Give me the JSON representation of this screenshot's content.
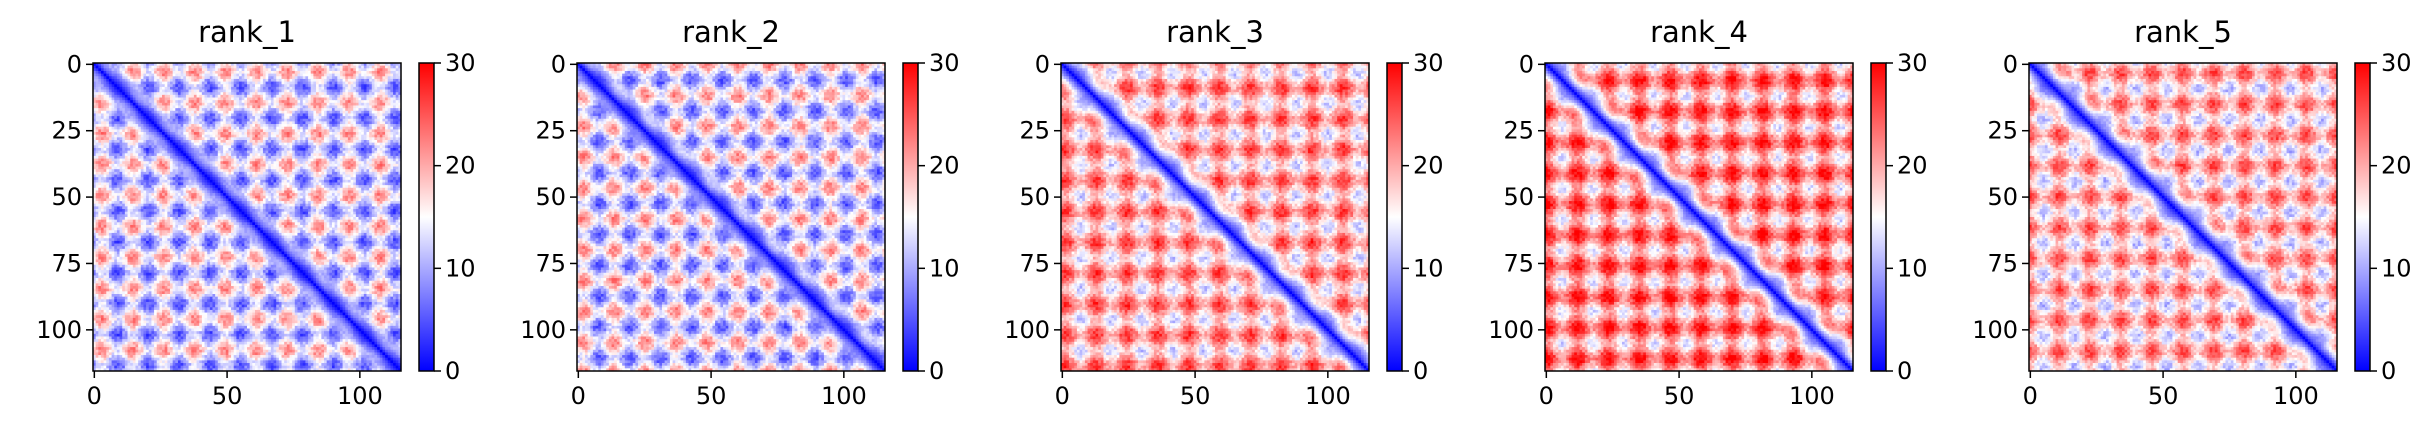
{
  "chart_data": {
    "type": "heatmap",
    "colormap": {
      "name": "bwr",
      "low": "#0000ff",
      "mid": "#ffffff",
      "high": "#ff0000"
    },
    "matrix_size": 116,
    "vmin": 0,
    "vmax": 30,
    "x_ticks": [
      "0",
      "50",
      "100"
    ],
    "x_tick_values": [
      0,
      50,
      100
    ],
    "y_ticks": [
      "0",
      "25",
      "50",
      "75",
      "100"
    ],
    "y_tick_values": [
      0,
      25,
      50,
      75,
      100
    ],
    "colorbar_ticks": [
      "0",
      "10",
      "20",
      "30"
    ],
    "colorbar_tick_values": [
      0,
      10,
      20,
      30
    ],
    "panels": [
      {
        "title": "rank_1",
        "offdiag_mean": 13.5,
        "pattern_amp": 9
      },
      {
        "title": "rank_2",
        "offdiag_mean": 13.8,
        "pattern_amp": 9
      },
      {
        "title": "rank_3",
        "offdiag_mean": 19.5,
        "pattern_amp": 8
      },
      {
        "title": "rank_4",
        "offdiag_mean": 21.5,
        "pattern_amp": 9
      },
      {
        "title": "rank_5",
        "offdiag_mean": 18.5,
        "pattern_amp": 8
      }
    ]
  }
}
